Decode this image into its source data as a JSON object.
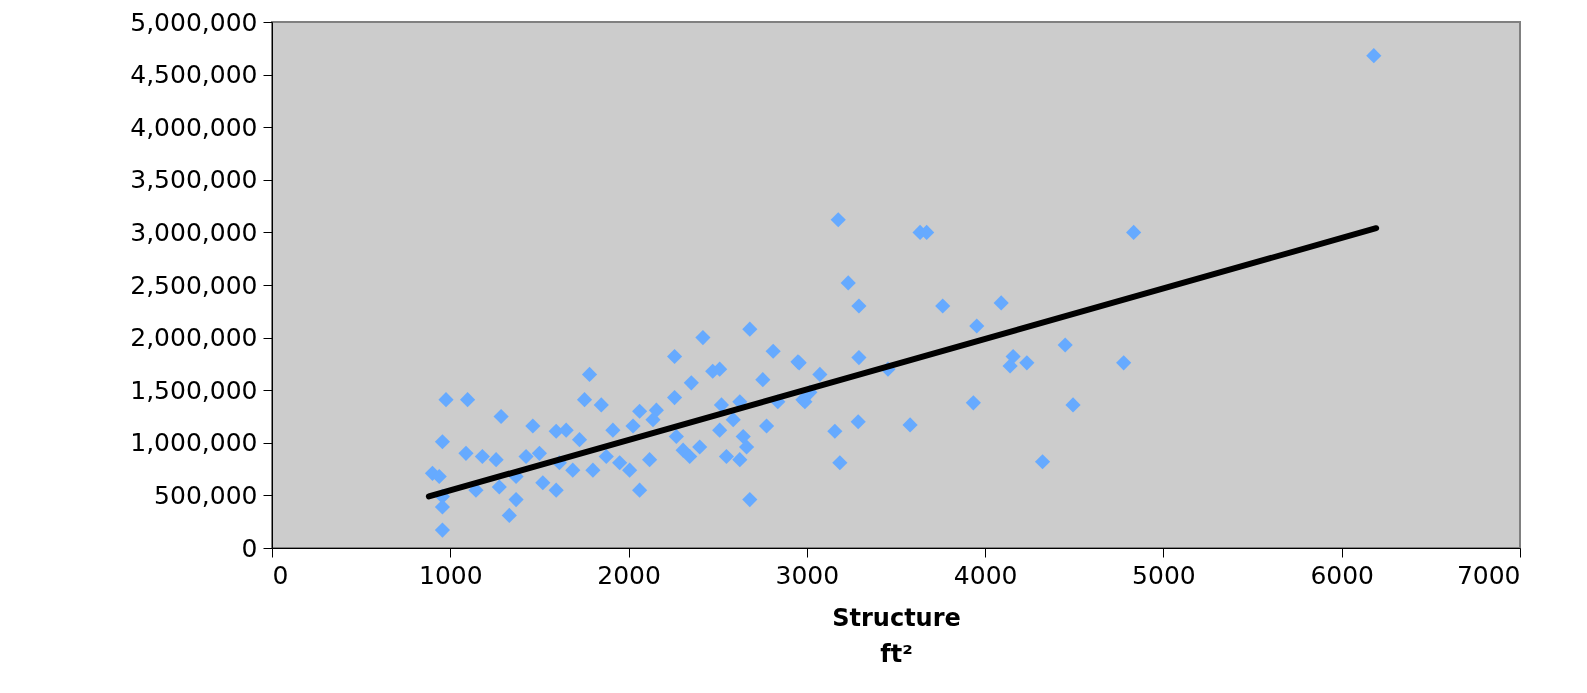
{
  "chart_data": {
    "type": "scatter",
    "xlabel": "Structure ft²",
    "marker": "diamond",
    "xlim": [
      0,
      7000
    ],
    "xticks": [
      0,
      1000,
      2000,
      3000,
      4000,
      5000,
      6000,
      7000
    ],
    "ylim": [
      0,
      5000000
    ],
    "yticks": [
      0,
      {
        "value": 500000,
        "label": "500,000"
      },
      {
        "value": 1000000,
        "label": "1,000,000"
      },
      {
        "value": 1500000,
        "label": "1,500,000"
      },
      {
        "value": 2000000,
        "label": "2,000,000"
      },
      {
        "value": 2500000,
        "label": "2,500,000"
      },
      {
        "value": 3000000,
        "label": "3,000,000"
      },
      {
        "value": 3500000,
        "label": "3,500,000"
      },
      {
        "value": 4000000,
        "label": "4,000,000"
      },
      {
        "value": 4500000,
        "label": "4,500,000"
      },
      {
        "value": 5000000,
        "label": "5,000,000"
      }
    ],
    "series": [
      {
        "color": "#66aaff",
        "x": [
          6180,
          3176,
          3635,
          3672,
          4833,
          3232,
          3292,
          3762,
          4090,
          3953,
          4449,
          2957,
          3073,
          3292,
          3455,
          4157,
          4234,
          4140,
          4777,
          2978,
          3017,
          3157,
          3288,
          3579,
          3934,
          4493,
          3185,
          4322,
          976,
          1097,
          1285,
          1463,
          1594,
          1650,
          1781,
          1753,
          1847,
          2062,
          2156,
          2258,
          2258,
          2352,
          2417,
          2680,
          2811,
          2950,
          2472,
          2511,
          2753,
          2837,
          2989,
          2521,
          2624,
          2062,
          2680,
          1331,
          956,
          956,
          900,
          938,
          956,
          956,
          1088,
          1180,
          1257,
          1144,
          1275,
          1369,
          1369,
          1425,
          1500,
          1519,
          1594,
          1612,
          1725,
          1687,
          1800,
          1875,
          1912,
          1950,
          2006,
          2025,
          2118,
          2137,
          2268,
          2306,
          2343,
          2399,
          2511,
          2587,
          2549,
          2624,
          2643,
          2662,
          2774
        ],
        "values": [
          4680000,
          3120000,
          3000000,
          3000000,
          3000000,
          2520000,
          2300000,
          2300000,
          2330000,
          2110000,
          1930000,
          1760000,
          1650000,
          1810000,
          1700000,
          1820000,
          1760000,
          1730000,
          1760000,
          1410000,
          1480000,
          1110000,
          1200000,
          1170000,
          1380000,
          1360000,
          810000,
          820000,
          1410000,
          1410000,
          1250000,
          1160000,
          1110000,
          1120000,
          1650000,
          1410000,
          1360000,
          1300000,
          1310000,
          1820000,
          1430000,
          1570000,
          2000000,
          2080000,
          1870000,
          1770000,
          1680000,
          1700000,
          1600000,
          1390000,
          1390000,
          1360000,
          1390000,
          550000,
          460000,
          310000,
          170000,
          1010000,
          710000,
          680000,
          490000,
          390000,
          900000,
          870000,
          840000,
          550000,
          580000,
          460000,
          680000,
          870000,
          900000,
          620000,
          550000,
          810000,
          1030000,
          740000,
          740000,
          870000,
          1120000,
          810000,
          740000,
          1160000,
          840000,
          1220000,
          1060000,
          930000,
          870000,
          960000,
          1120000,
          1220000,
          870000,
          840000,
          1060000,
          960000,
          1160000
        ]
      },
      {
        "type": "line",
        "marker": "none",
        "color": "#000000",
        "x": [
          880,
          6193
        ],
        "values": [
          490000,
          3040000
        ]
      }
    ]
  }
}
